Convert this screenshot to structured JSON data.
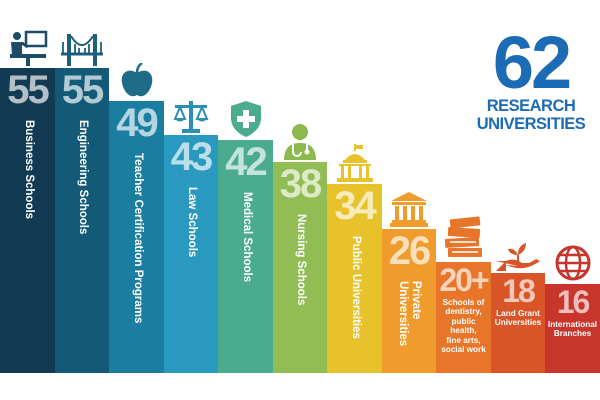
{
  "headline": {
    "number": "62",
    "line1": "RESEARCH",
    "line2": "UNIVERSITIES",
    "color": "#1b6bb5"
  },
  "chart_data": {
    "type": "bar",
    "categories": [
      "Business Schools",
      "Engineering Schools",
      "Teacher Certification Programs",
      "Law Schools",
      "Medical Schools",
      "Nursing Schools",
      "Public Universities",
      "Private Universities",
      "Schools of dentistry, public health, fine arts, social work",
      "Land Grant Universities",
      "International Branches"
    ],
    "values": [
      55,
      55,
      49,
      43,
      42,
      38,
      34,
      26,
      20,
      18,
      16
    ],
    "value_labels": [
      "55",
      "55",
      "49",
      "43",
      "42",
      "38",
      "34",
      "26",
      "20+",
      "18",
      "16"
    ],
    "label_lines": [
      [
        "Business Schools"
      ],
      [
        "Engineering Schools"
      ],
      [
        "Teacher Certification Programs"
      ],
      [
        "Law Schools"
      ],
      [
        "Medical Schools"
      ],
      [
        "Nursing Schools"
      ],
      [
        "Public Universities"
      ],
      [
        "Private",
        "Universities"
      ],
      [
        "Schools of",
        "dentistry,",
        "public health,",
        "fine arts,",
        "social work"
      ],
      [
        "Land Grant",
        "Universities"
      ],
      [
        "International",
        "Branches"
      ]
    ],
    "label_orientation": [
      "vertical",
      "vertical",
      "vertical",
      "vertical",
      "vertical",
      "vertical",
      "vertical",
      "vertical",
      "horizontal",
      "horizontal",
      "horizontal"
    ],
    "colors": [
      "#123a52",
      "#135a78",
      "#1b7ea0",
      "#2a99bf",
      "#4aab8e",
      "#92bd54",
      "#e8c22a",
      "#ef9c2c",
      "#e8762a",
      "#d95528",
      "#c8352a"
    ],
    "icons": [
      "teacher-icon",
      "bridge-icon",
      "apple-icon",
      "scales-icon",
      "medical-shield-icon",
      "nurse-icon",
      "capitol-building-icon",
      "columns-building-icon",
      "books-icon",
      "hand-sprout-icon",
      "globe-icon"
    ],
    "ylim": [
      0,
      55
    ],
    "grid": false,
    "legend": "none"
  }
}
